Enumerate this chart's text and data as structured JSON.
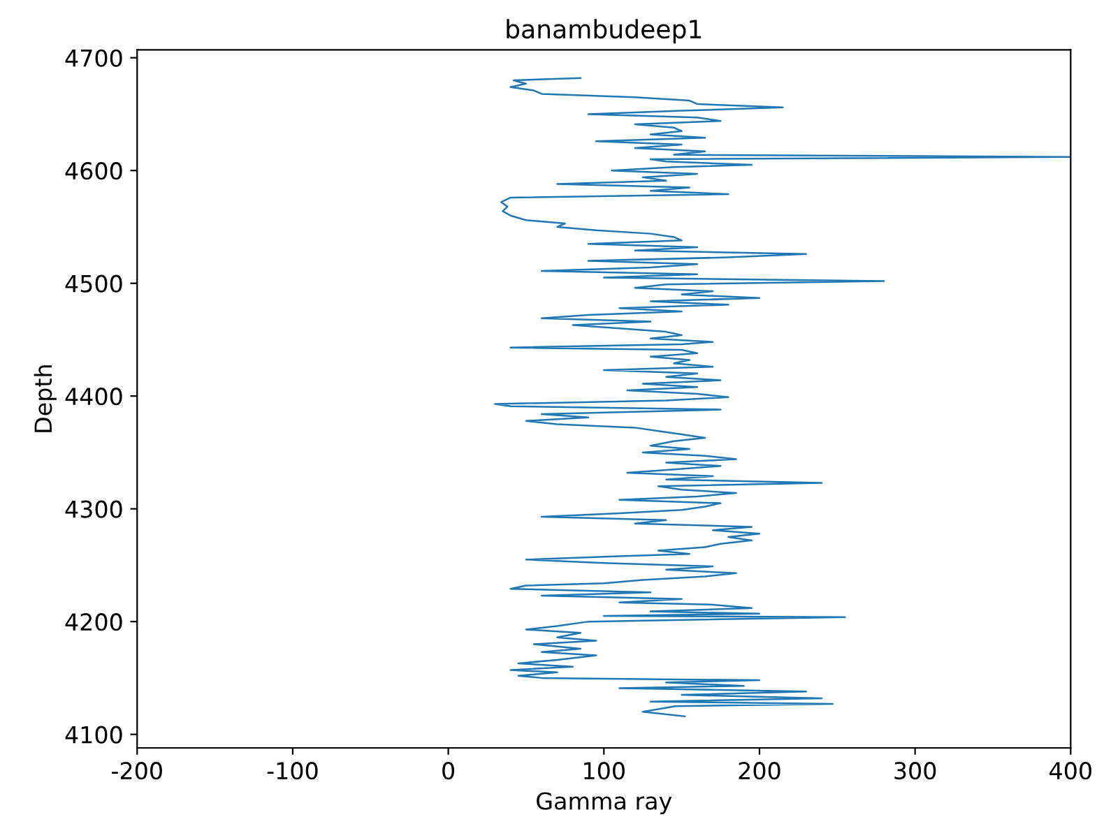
{
  "chart_data": {
    "type": "line",
    "title": "banambudeep1",
    "xlabel": "Gamma ray",
    "ylabel": "Depth",
    "xlim": [
      -200,
      400
    ],
    "xticks": [
      -200,
      -100,
      0,
      100,
      200,
      300,
      400
    ],
    "ylim": [
      4088,
      4707
    ],
    "yticks": [
      4100,
      4200,
      4300,
      4400,
      4500,
      4600,
      4700
    ],
    "grid": false,
    "marker": "none",
    "line_style": "solid",
    "series": [
      {
        "color": "#1f77b4",
        "x": [
          152,
          125,
          146,
          247,
          130,
          240,
          150,
          230,
          110,
          190,
          140,
          200,
          60,
          45,
          70,
          40,
          80,
          45,
          70,
          95,
          60,
          85,
          55,
          95,
          70,
          85,
          50,
          70,
          90,
          255,
          100,
          200,
          130,
          195,
          170,
          110,
          150,
          60,
          130,
          40,
          50,
          100,
          125,
          165,
          185,
          140,
          170,
          100,
          50,
          110,
          155,
          135,
          165,
          175,
          195,
          180,
          200,
          170,
          195,
          120,
          140,
          60,
          110,
          150,
          165,
          175,
          110,
          160,
          185,
          150,
          135,
          240,
          140,
          170,
          115,
          145,
          175,
          140,
          185,
          165,
          125,
          155,
          130,
          145,
          165,
          150,
          135,
          120,
          70,
          50,
          90,
          60,
          175,
          40,
          30,
          140,
          180,
          160,
          115,
          160,
          125,
          175,
          140,
          160,
          100,
          170,
          145,
          155,
          130,
          160,
          150,
          40,
          150,
          170,
          130,
          150,
          140,
          110,
          80,
          130,
          60,
          90,
          150,
          110,
          180,
          130,
          200,
          150,
          170,
          120,
          140,
          280,
          100,
          160,
          60,
          130,
          160,
          90,
          180,
          230,
          120,
          160,
          90,
          150,
          145,
          130,
          95,
          70,
          75,
          50,
          40,
          35,
          38,
          34,
          40,
          180,
          130,
          155,
          70,
          140,
          125,
          160,
          105,
          145,
          195,
          140,
          130,
          400,
          145,
          165,
          120,
          150,
          95,
          165,
          130,
          150,
          145,
          120,
          175,
          160,
          90,
          150,
          215,
          160,
          155,
          120,
          60,
          55,
          40,
          50,
          42,
          85
        ],
        "values": [
          4116,
          4120,
          4125,
          4127,
          4129,
          4132,
          4135,
          4138,
          4141,
          4143,
          4146,
          4148,
          4150,
          4152,
          4155,
          4157,
          4160,
          4163,
          4166,
          4170,
          4173,
          4176,
          4180,
          4183,
          4186,
          4190,
          4193,
          4196,
          4200,
          4204,
          4205,
          4207,
          4209,
          4212,
          4215,
          4217,
          4220,
          4223,
          4226,
          4229,
          4232,
          4234,
          4237,
          4240,
          4243,
          4246,
          4249,
          4252,
          4255,
          4258,
          4260,
          4263,
          4266,
          4269,
          4272,
          4275,
          4278,
          4281,
          4284,
          4287,
          4290,
          4293,
          4296,
          4299,
          4302,
          4305,
          4308,
          4311,
          4314,
          4317,
          4320,
          4323,
          4326,
          4329,
          4332,
          4335,
          4338,
          4341,
          4344,
          4347,
          4350,
          4353,
          4356,
          4360,
          4363,
          4366,
          4369,
          4372,
          4375,
          4378,
          4381,
          4384,
          4388,
          4391,
          4393,
          4396,
          4399,
          4402,
          4405,
          4408,
          4411,
          4414,
          4417,
          4420,
          4423,
          4426,
          4429,
          4432,
          4435,
          4438,
          4441,
          4443,
          4446,
          4448,
          4451,
          4454,
          4457,
          4460,
          4463,
          4466,
          4469,
          4472,
          4475,
          4478,
          4481,
          4484,
          4487,
          4490,
          4493,
          4496,
          4499,
          4502,
          4505,
          4508,
          4511,
          4514,
          4517,
          4520,
          4523,
          4526,
          4529,
          4532,
          4535,
          4538,
          4541,
          4544,
          4547,
          4550,
          4553,
          4556,
          4560,
          4564,
          4568,
          4572,
          4576,
          4579,
          4582,
          4585,
          4588,
          4591,
          4594,
          4597,
          4600,
          4603,
          4605,
          4608,
          4610,
          4612,
          4614,
          4617,
          4620,
          4623,
          4626,
          4629,
          4632,
          4635,
          4638,
          4641,
          4644,
          4647,
          4650,
          4653,
          4656,
          4659,
          4662,
          4665,
          4668,
          4671,
          4674,
          4677,
          4680,
          4682
        ]
      }
    ]
  }
}
